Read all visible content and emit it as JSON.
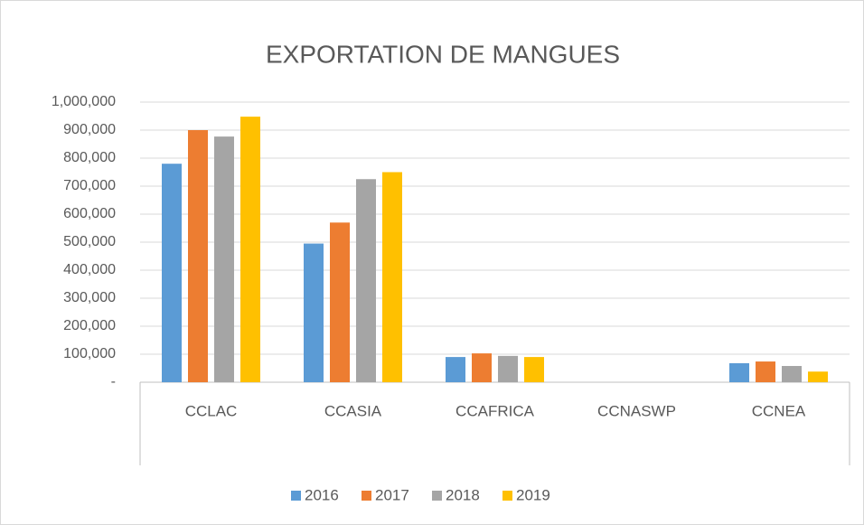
{
  "chart_data": {
    "type": "bar",
    "title": "EXPORTATION DE MANGUES",
    "categories": [
      "CCLAC",
      "CCASIA",
      "CCAFRICA",
      "CCNASWP",
      "CCNEA"
    ],
    "series": [
      {
        "name": "2016",
        "color": "#5b9bd5",
        "values": [
          780000,
          495000,
          90000,
          0,
          68000
        ]
      },
      {
        "name": "2017",
        "color": "#ed7d31",
        "values": [
          900000,
          570000,
          103000,
          0,
          74000
        ]
      },
      {
        "name": "2018",
        "color": "#a5a5a5",
        "values": [
          877000,
          725000,
          94000,
          0,
          58000
        ]
      },
      {
        "name": "2019",
        "color": "#ffc000",
        "values": [
          948000,
          750000,
          90000,
          0,
          38000
        ]
      }
    ],
    "ylim": [
      0,
      1000000
    ],
    "yticks": [
      {
        "value": 0,
        "label": "-"
      },
      {
        "value": 100000,
        "label": "100,000"
      },
      {
        "value": 200000,
        "label": "200,000"
      },
      {
        "value": 300000,
        "label": "300,000"
      },
      {
        "value": 400000,
        "label": "400,000"
      },
      {
        "value": 500000,
        "label": "500,000"
      },
      {
        "value": 600000,
        "label": "600,000"
      },
      {
        "value": 700000,
        "label": "700,000"
      },
      {
        "value": 800000,
        "label": "800,000"
      },
      {
        "value": 900000,
        "label": "900,000"
      },
      {
        "value": 1000000,
        "label": "1,000,000"
      }
    ],
    "grid": true,
    "legend": "bottom"
  }
}
